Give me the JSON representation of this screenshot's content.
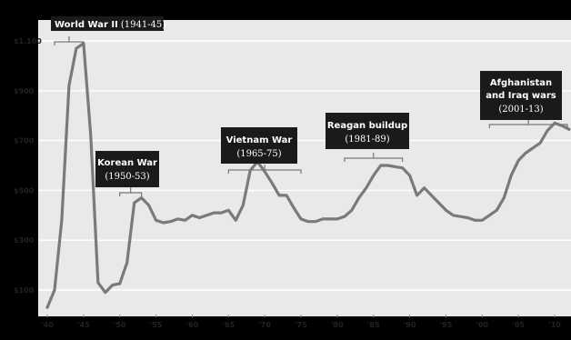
{
  "colors": {
    "background": "#000000",
    "plot_bg": "#e9e9e9",
    "line": "#7a7a7a",
    "grid": "#ffffff",
    "label_bg": "#1a1a1a",
    "label_text": "#ffffff",
    "bracket": "#777777"
  },
  "chart_data": {
    "type": "line",
    "title": "",
    "xlabel": "",
    "ylabel": "",
    "ylim": [
      0,
      1150
    ],
    "xlim": [
      1940,
      2012
    ],
    "grid": true,
    "y_ticks": [
      {
        "value": 100,
        "label": "$100"
      },
      {
        "value": 300,
        "label": "$300"
      },
      {
        "value": 500,
        "label": "$500"
      },
      {
        "value": 700,
        "label": "$700"
      },
      {
        "value": 900,
        "label": "$900"
      },
      {
        "value": 1100,
        "label": "$1,100"
      }
    ],
    "x_ticks": [
      {
        "value": 1940,
        "label": "'40"
      },
      {
        "value": 1945,
        "label": "'45"
      },
      {
        "value": 1950,
        "label": "'50"
      },
      {
        "value": 1955,
        "label": "'55"
      },
      {
        "value": 1960,
        "label": "'60"
      },
      {
        "value": 1965,
        "label": "'65"
      },
      {
        "value": 1970,
        "label": "'70"
      },
      {
        "value": 1975,
        "label": "'75"
      },
      {
        "value": 1980,
        "label": "'80"
      },
      {
        "value": 1985,
        "label": "'85"
      },
      {
        "value": 1990,
        "label": "'90"
      },
      {
        "value": 1995,
        "label": "'95"
      },
      {
        "value": 2000,
        "label": "'00"
      },
      {
        "value": 2005,
        "label": "'05"
      },
      {
        "value": 2010,
        "label": "'10"
      }
    ],
    "x": [
      1940,
      1941,
      1942,
      1943,
      1944,
      1945,
      1946,
      1947,
      1948,
      1949,
      1950,
      1951,
      1952,
      1953,
      1954,
      1955,
      1956,
      1957,
      1958,
      1959,
      1960,
      1961,
      1962,
      1963,
      1964,
      1965,
      1966,
      1967,
      1968,
      1969,
      1970,
      1971,
      1972,
      1973,
      1974,
      1975,
      1976,
      1977,
      1978,
      1979,
      1980,
      1981,
      1982,
      1983,
      1984,
      1985,
      1986,
      1987,
      1988,
      1989,
      1990,
      1991,
      1992,
      1993,
      1994,
      1995,
      1996,
      1997,
      1998,
      1999,
      2000,
      2001,
      2002,
      2003,
      2004,
      2005,
      2006,
      2007,
      2008,
      2009,
      2010,
      2011,
      2012
    ],
    "values": [
      30,
      100,
      380,
      920,
      1070,
      1090,
      720,
      130,
      90,
      120,
      125,
      210,
      450,
      470,
      440,
      380,
      370,
      375,
      385,
      380,
      400,
      390,
      400,
      410,
      410,
      420,
      380,
      440,
      580,
      615,
      575,
      530,
      480,
      480,
      430,
      385,
      375,
      375,
      385,
      385,
      385,
      395,
      420,
      470,
      510,
      560,
      600,
      600,
      595,
      590,
      560,
      480,
      510,
      480,
      450,
      420,
      400,
      395,
      390,
      380,
      380,
      400,
      420,
      470,
      560,
      620,
      650,
      670,
      690,
      740,
      770,
      760,
      745
    ]
  },
  "annotations": [
    {
      "title": "World War II",
      "subtitle": "(1941-45)"
    },
    {
      "title": "Korean War",
      "subtitle": "(1950-53)"
    },
    {
      "title": "Vietnam War",
      "subtitle": "(1965-75)"
    },
    {
      "title": "Reagan buildup",
      "subtitle": "(1981-89)"
    },
    {
      "title": "Afghanistan",
      "title2": "and Iraq wars",
      "subtitle": "(2001-13)"
    }
  ]
}
